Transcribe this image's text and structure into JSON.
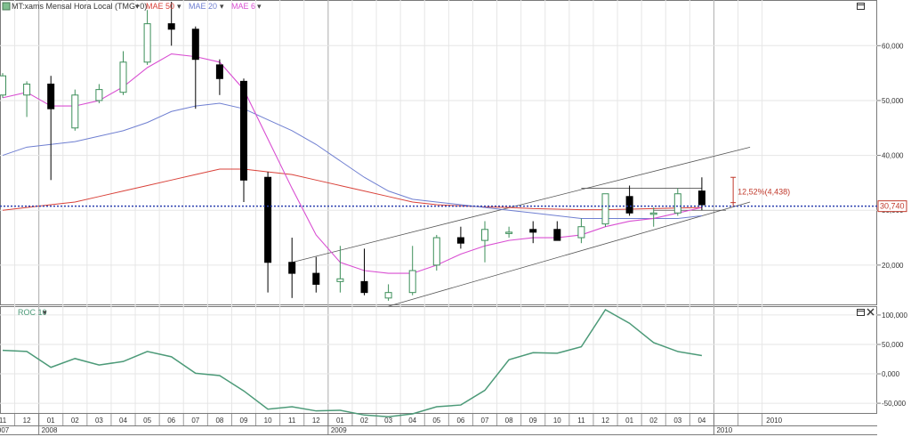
{
  "header": {
    "symbol_label": "MT:xams Mensal Hora Local (TMG+0)",
    "indicators": [
      {
        "label": "MAE 50",
        "color": "#d9423a"
      },
      {
        "label": "MAE 20",
        "color": "#6f7fd1"
      },
      {
        "label": "MAE 6",
        "color": "#d94fd2"
      }
    ]
  },
  "roc_panel": {
    "label": "ROC 10"
  },
  "price_marker": {
    "label": "30,740",
    "value": 30740
  },
  "measure": {
    "label": "12,52%(4,438)"
  },
  "colors": {
    "up": "#ffffff",
    "up_border": "#3d8f5a",
    "down": "#000000",
    "roc_line": "#4c9a78",
    "price_line": "#2a3fae"
  },
  "chart_data": [
    {
      "type": "candlestick",
      "price_axis_ticks": [
        20000,
        30000,
        40000,
        50000,
        60000
      ],
      "price_axis_labels": [
        "20,000",
        "30,000",
        "40,000",
        "50,000",
        "60,000"
      ],
      "ylim": [
        13000,
        68000
      ],
      "months": [
        "11",
        "12",
        "01",
        "02",
        "03",
        "04",
        "05",
        "06",
        "07",
        "08",
        "09",
        "10",
        "11",
        "12",
        "01",
        "02",
        "03",
        "04",
        "05",
        "06",
        "07",
        "08",
        "09",
        "10",
        "11",
        "12",
        "01",
        "02",
        "03",
        "04",
        "",
        "",
        "2010"
      ],
      "years": [
        {
          "label": "2007",
          "start_index": 0
        },
        {
          "label": "2008",
          "start_index": 2
        },
        {
          "label": "2009",
          "start_index": 14
        },
        {
          "label": "2010",
          "start_index": 30
        }
      ],
      "candles": [
        {
          "o": 51000,
          "h": 55000,
          "l": 50500,
          "c": 54500
        },
        {
          "o": 51000,
          "h": 53500,
          "l": 47000,
          "c": 53000
        },
        {
          "o": 53000,
          "h": 54500,
          "l": 35500,
          "c": 48500
        },
        {
          "o": 45000,
          "h": 52000,
          "l": 44500,
          "c": 51000
        },
        {
          "o": 50000,
          "h": 53000,
          "l": 49500,
          "c": 52000
        },
        {
          "o": 51500,
          "h": 59000,
          "l": 51000,
          "c": 57000
        },
        {
          "o": 57000,
          "h": 66500,
          "l": 56500,
          "c": 64000
        },
        {
          "o": 64000,
          "h": 68000,
          "l": 60000,
          "c": 63000
        },
        {
          "o": 63000,
          "h": 63500,
          "l": 48500,
          "c": 57500
        },
        {
          "o": 56500,
          "h": 57500,
          "l": 51000,
          "c": 54000
        },
        {
          "o": 53500,
          "h": 54000,
          "l": 31500,
          "c": 35500
        },
        {
          "o": 36000,
          "h": 37000,
          "l": 15000,
          "c": 20500
        },
        {
          "o": 20500,
          "h": 25000,
          "l": 14000,
          "c": 18500
        },
        {
          "o": 18500,
          "h": 21500,
          "l": 15000,
          "c": 16500
        },
        {
          "o": 17000,
          "h": 23500,
          "l": 15000,
          "c": 17500
        },
        {
          "o": 17000,
          "h": 23000,
          "l": 14500,
          "c": 15000
        },
        {
          "o": 14000,
          "h": 16500,
          "l": 13500,
          "c": 15000
        },
        {
          "o": 15000,
          "h": 23500,
          "l": 14500,
          "c": 19000
        },
        {
          "o": 20000,
          "h": 25500,
          "l": 19000,
          "c": 25000
        },
        {
          "o": 25000,
          "h": 27000,
          "l": 23000,
          "c": 24000
        },
        {
          "o": 24500,
          "h": 28000,
          "l": 20500,
          "c": 26500
        },
        {
          "o": 26000,
          "h": 27000,
          "l": 25000,
          "c": 26000
        },
        {
          "o": 26500,
          "h": 28000,
          "l": 24000,
          "c": 26000
        },
        {
          "o": 26500,
          "h": 28000,
          "l": 24500,
          "c": 24500
        },
        {
          "o": 25000,
          "h": 28500,
          "l": 24000,
          "c": 27000
        },
        {
          "o": 27500,
          "h": 33000,
          "l": 27000,
          "c": 33000
        },
        {
          "o": 32500,
          "h": 34500,
          "l": 29000,
          "c": 29500
        },
        {
          "o": 29500,
          "h": 30500,
          "l": 27000,
          "c": 29500
        },
        {
          "o": 29500,
          "h": 34000,
          "l": 29000,
          "c": 33000
        },
        {
          "o": 33500,
          "h": 36000,
          "l": 30000,
          "c": 31000
        }
      ],
      "mae6": [
        50500,
        51500,
        49000,
        49000,
        50000,
        52500,
        56000,
        58500,
        58000,
        57000,
        52000,
        43000,
        34000,
        25500,
        20500,
        19000,
        18500,
        18500,
        20000,
        22000,
        23500,
        24500,
        25000,
        25000,
        25500,
        27000,
        28000,
        28500,
        29500,
        30500
      ],
      "mae20": [
        40000,
        41500,
        42000,
        42500,
        43500,
        44500,
        46000,
        48000,
        49000,
        49500,
        48500,
        46500,
        44500,
        42000,
        39000,
        36000,
        33500,
        32000,
        31500,
        31000,
        30500,
        30000,
        29500,
        29000,
        28500,
        28500,
        28500,
        28500,
        28500,
        29000
      ],
      "mae50": [
        30000,
        30500,
        31000,
        31500,
        32500,
        33500,
        34500,
        35500,
        36500,
        37500,
        37500,
        37000,
        36500,
        35500,
        34500,
        33500,
        32500,
        31500,
        31000,
        30800,
        30600,
        30500,
        30300,
        30200,
        30100,
        30100,
        30200,
        30300,
        30400,
        30500
      ],
      "channel": {
        "upper": {
          "i1": 12,
          "v1": 20500,
          "i2": 31,
          "v2": 41500
        },
        "lower": {
          "i1": 16,
          "v1": 12500,
          "i2": 31,
          "v2": 31500
        },
        "flat_top": {
          "i1": 24,
          "i2": 29,
          "v": 34000
        },
        "flat_bottom": {
          "i1": 27,
          "i2": 30,
          "v": 30000
        }
      }
    },
    {
      "type": "line",
      "name": "ROC 10",
      "yticks": [
        -50000,
        0,
        50000,
        100000
      ],
      "ytick_labels": [
        "-50,000",
        "0,000",
        "50,000",
        "100,000"
      ],
      "ylim": [
        -65000,
        112000
      ],
      "values": [
        40000,
        38000,
        11000,
        26000,
        15000,
        21000,
        38000,
        29000,
        1000,
        -3000,
        -29000,
        -60000,
        -56000,
        -63000,
        -62000,
        -70000,
        -73000,
        -68000,
        -56000,
        -53000,
        -28000,
        24000,
        36000,
        35000,
        46000,
        109000,
        86000,
        53000,
        38000,
        31000
      ]
    }
  ]
}
